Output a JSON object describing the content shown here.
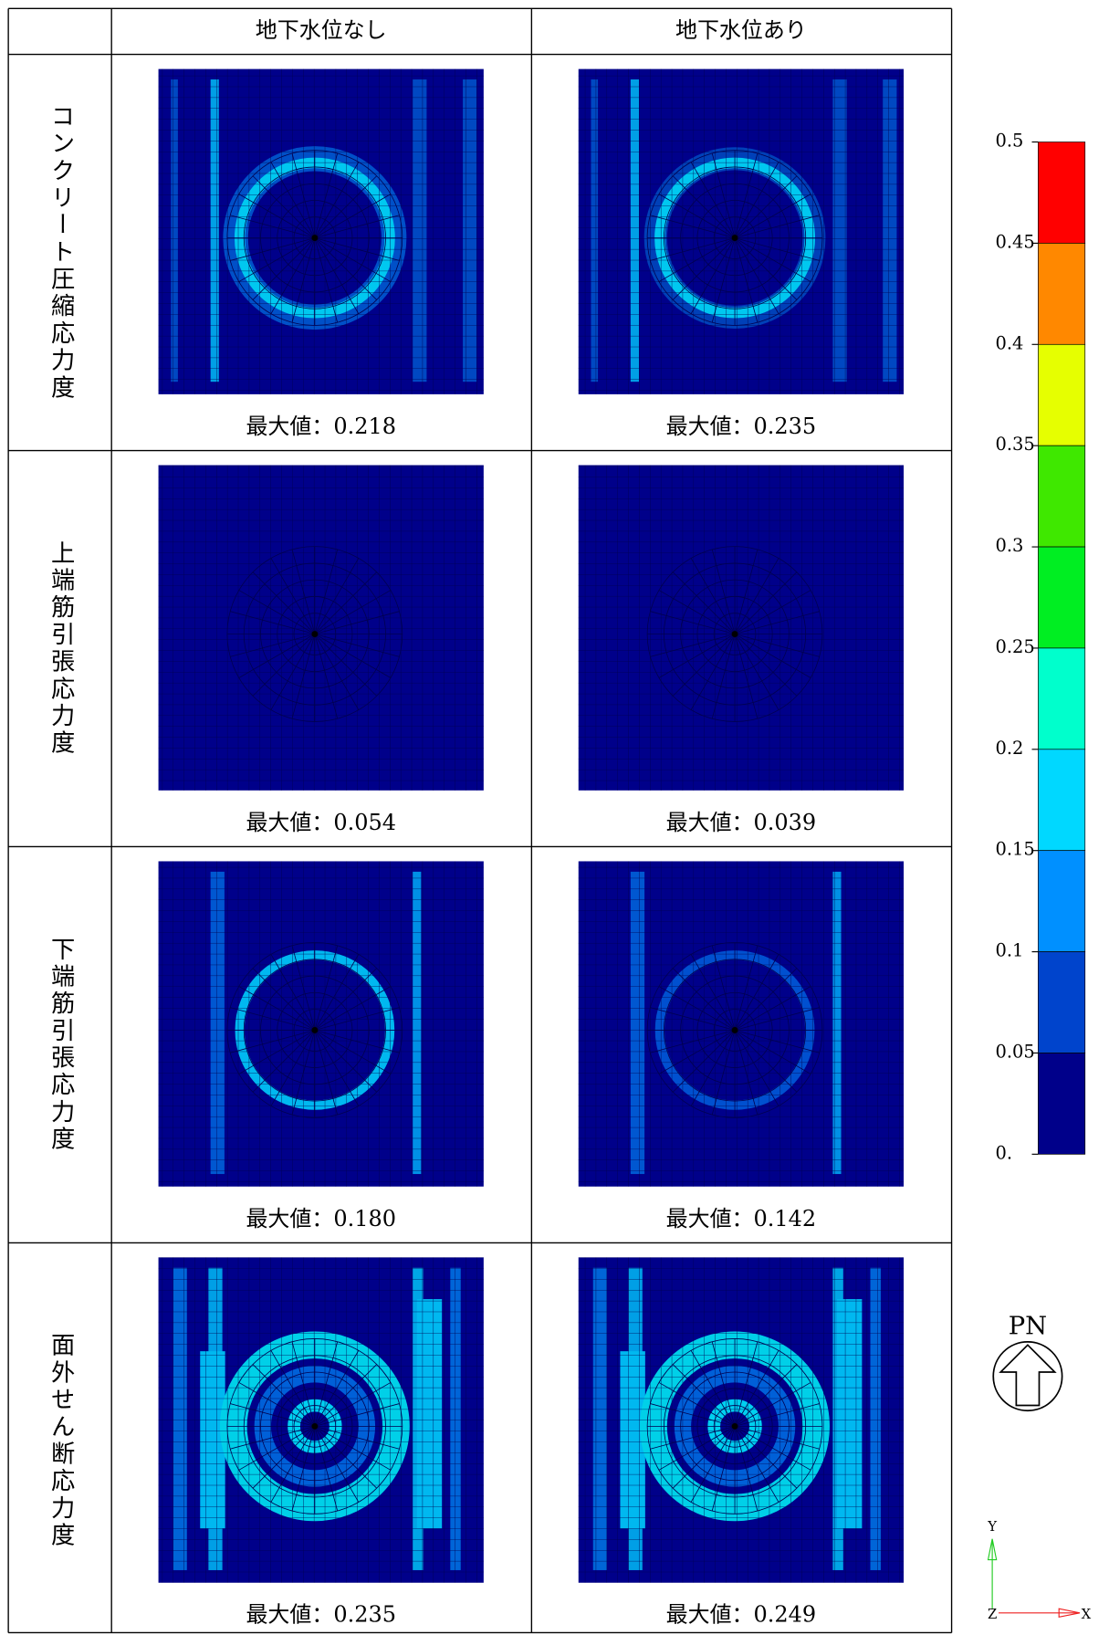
{
  "header": {
    "columns": [
      "地下水位なし",
      "地下水位あり"
    ]
  },
  "rows": [
    {
      "label": "コンクリート圧縮応力度",
      "max": [
        "最大値：0.218",
        "最大値：0.235"
      ]
    },
    {
      "label": "上端筋引張応力度",
      "max": [
        "最大値：0.054",
        "最大値：0.039"
      ]
    },
    {
      "label": "下端筋引張応力度",
      "max": [
        "最大値：0.180",
        "最大値：0.142"
      ]
    },
    {
      "label": "面外せん断応力度",
      "max": [
        "最大値：0.235",
        "最大値：0.249"
      ]
    }
  ],
  "colorbar": {
    "lim": [
      0,
      0.5
    ],
    "ticks": [
      0.5,
      0.45,
      0.4,
      0.35,
      0.3,
      0.25,
      0.2,
      0.15,
      0.1,
      0.05,
      {
        "value": 0,
        "label": "0."
      }
    ],
    "colors": [
      "#ff0000",
      "#ff8800",
      "#e6ff00",
      "#3fe800",
      "#00ee22",
      "#00ffcc",
      "#00d8ff",
      "#0090ff",
      "#0044cc",
      "#00008a"
    ]
  },
  "compass": {
    "label": "PN"
  },
  "axes": {
    "y": "Y",
    "z": "Z",
    "x": "X"
  }
}
